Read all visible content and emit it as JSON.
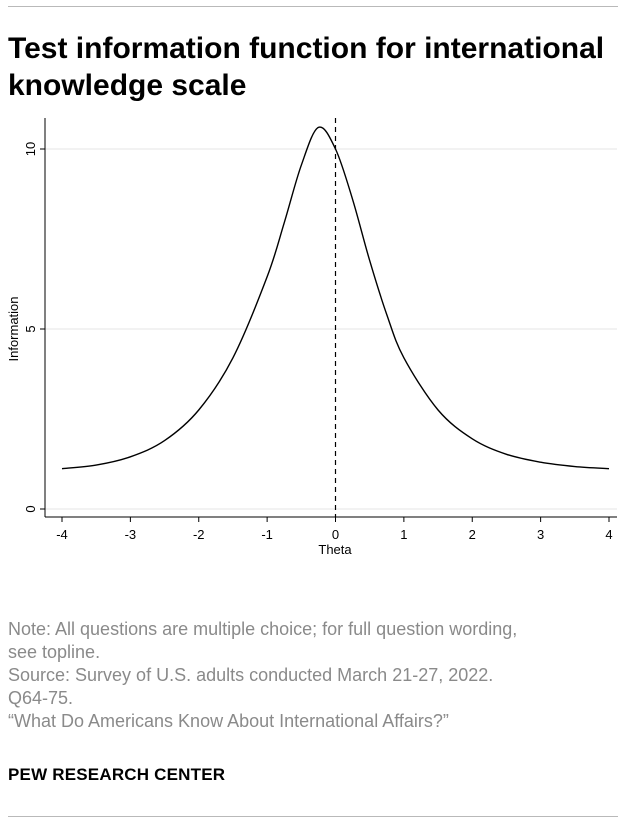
{
  "title": "Test information function for international knowledge scale",
  "chart_data": {
    "type": "line",
    "xlabel": "Theta",
    "ylabel": "Information",
    "xlim": [
      -4,
      4
    ],
    "ylim": [
      0,
      10.8
    ],
    "x_ticks": [
      "-4",
      "-3",
      "-2",
      "-1",
      "0",
      "1",
      "2",
      "3",
      "4"
    ],
    "y_ticks": [
      "0",
      "5",
      "10"
    ],
    "grid": "horizontal",
    "reference_line": {
      "x": 0,
      "style": "dashed"
    },
    "series": [
      {
        "x": [
          -4,
          -3.5,
          -3,
          -2.5,
          -2,
          -1.5,
          -1,
          -0.75,
          -0.5,
          -0.25,
          0,
          0.25,
          0.5,
          0.75,
          1,
          1.5,
          2,
          2.5,
          3,
          3.5,
          4
        ],
        "values": [
          1.12,
          1.22,
          1.45,
          1.9,
          2.75,
          4.2,
          6.45,
          7.95,
          9.55,
          10.6,
          10.0,
          8.6,
          6.9,
          5.4,
          4.2,
          2.75,
          1.95,
          1.52,
          1.3,
          1.18,
          1.12
        ]
      }
    ]
  },
  "notes": {
    "note_line1": "Note: All questions are multiple choice; for full question wording,",
    "note_line2": "see topline.",
    "source_line1": "Source: Survey of U.S. adults conducted March 21-27, 2022.",
    "source_line2": "Q64-75.",
    "report_title": "“What Do Americans Know About International Affairs?”"
  },
  "source_org": "PEW RESEARCH CENTER"
}
